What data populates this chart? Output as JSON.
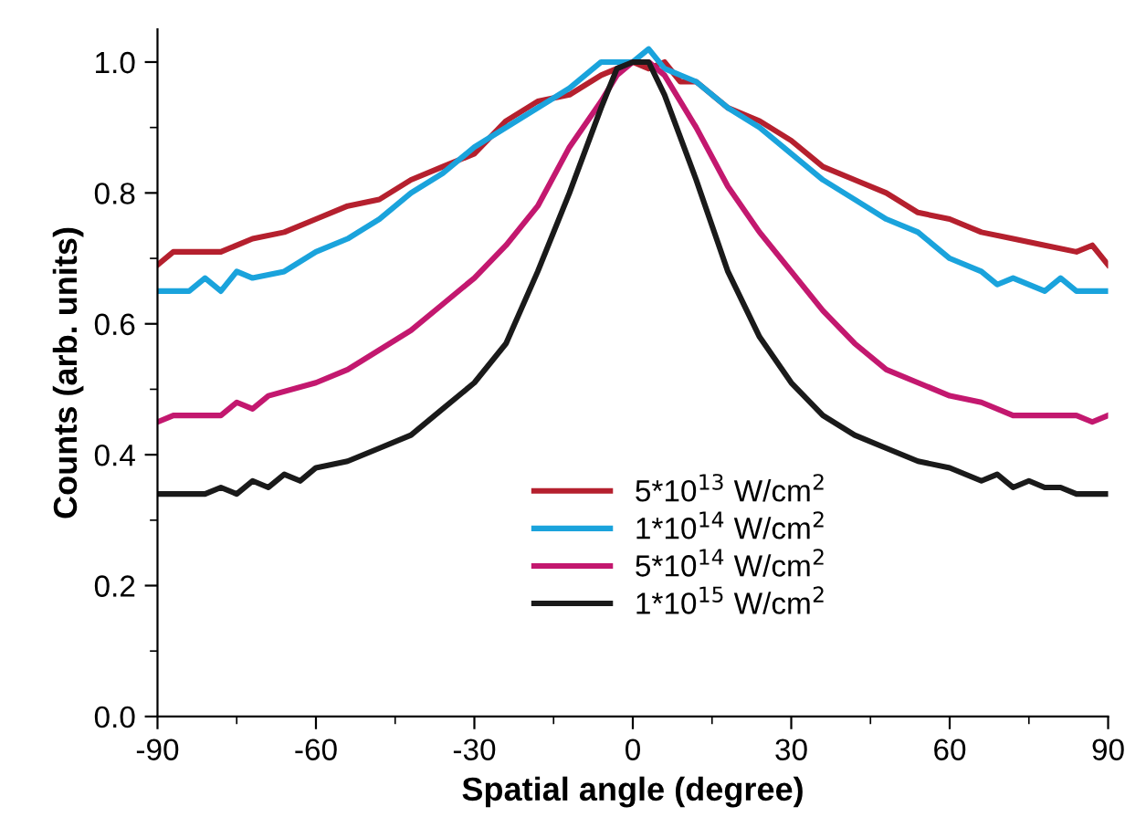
{
  "chart_data": {
    "type": "line",
    "xlabel": "Spatial angle (degree)",
    "ylabel": "Counts (arb. units)",
    "xlim": [
      -90,
      90
    ],
    "xticks": [
      -90,
      -60,
      -30,
      0,
      30,
      60,
      90
    ],
    "ylim": [
      0,
      1.05
    ],
    "yticks": [
      {
        "value": 0,
        "label": "0.0"
      },
      {
        "value": 0.2,
        "label": "0.2"
      },
      {
        "value": 0.4,
        "label": "0.4"
      },
      {
        "value": 0.6,
        "label": "0.6"
      },
      {
        "value": 0.8,
        "label": "0.8"
      },
      {
        "value": 1.0,
        "label": "1.0"
      }
    ],
    "grid": false,
    "legend": "bottom",
    "marker": "none",
    "line_style": "solid",
    "series": [
      {
        "name": "5*10$^{13}$ W/cm$^{2}$",
        "color": "#b5202e",
        "x": [
          -90,
          -87,
          -78,
          -72,
          -66,
          -60,
          -54,
          -48,
          -42,
          -36,
          -30,
          -24,
          -18,
          -12,
          -6,
          -3,
          0,
          3,
          6,
          9,
          12,
          18,
          24,
          30,
          36,
          42,
          48,
          54,
          60,
          66,
          72,
          78,
          84,
          87,
          90
        ],
        "values": [
          0.69,
          0.71,
          0.71,
          0.73,
          0.74,
          0.76,
          0.78,
          0.79,
          0.82,
          0.84,
          0.86,
          0.91,
          0.94,
          0.95,
          0.98,
          0.99,
          1.0,
          0.99,
          1.0,
          0.97,
          0.97,
          0.93,
          0.91,
          0.88,
          0.84,
          0.82,
          0.8,
          0.77,
          0.76,
          0.74,
          0.73,
          0.72,
          0.71,
          0.72,
          0.69
        ]
      },
      {
        "name": "1*10$^{14}$ W/cm$^{2}$",
        "color": "#1aa3dc",
        "x": [
          -90,
          -84,
          -81,
          -78,
          -75,
          -72,
          -66,
          -60,
          -54,
          -48,
          -42,
          -36,
          -30,
          -24,
          -18,
          -12,
          -6,
          0,
          3,
          6,
          12,
          18,
          24,
          30,
          36,
          42,
          48,
          54,
          60,
          66,
          69,
          72,
          78,
          81,
          84,
          90
        ],
        "values": [
          0.65,
          0.65,
          0.67,
          0.65,
          0.68,
          0.67,
          0.68,
          0.71,
          0.73,
          0.76,
          0.8,
          0.83,
          0.87,
          0.9,
          0.93,
          0.96,
          1.0,
          1.0,
          1.02,
          0.99,
          0.97,
          0.93,
          0.9,
          0.86,
          0.82,
          0.79,
          0.76,
          0.74,
          0.7,
          0.68,
          0.66,
          0.67,
          0.65,
          0.67,
          0.65,
          0.65
        ]
      },
      {
        "name": "5*10$^{14}$ W/cm$^{2}$",
        "color": "#c3186f",
        "x": [
          -90,
          -87,
          -78,
          -75,
          -72,
          -69,
          -60,
          -54,
          -48,
          -42,
          -36,
          -30,
          -24,
          -18,
          -12,
          -6,
          -3,
          0,
          3,
          6,
          12,
          18,
          24,
          30,
          36,
          42,
          48,
          54,
          60,
          66,
          72,
          78,
          84,
          87,
          90
        ],
        "values": [
          0.45,
          0.46,
          0.46,
          0.48,
          0.47,
          0.49,
          0.51,
          0.53,
          0.56,
          0.59,
          0.63,
          0.67,
          0.72,
          0.78,
          0.87,
          0.94,
          0.98,
          1.0,
          1.0,
          0.98,
          0.9,
          0.81,
          0.74,
          0.68,
          0.62,
          0.57,
          0.53,
          0.51,
          0.49,
          0.48,
          0.46,
          0.46,
          0.46,
          0.45,
          0.46
        ]
      },
      {
        "name": "1*10$^{15}$ W/cm$^{2}$",
        "color": "#1a1a1a",
        "x": [
          -90,
          -81,
          -78,
          -75,
          -72,
          -69,
          -66,
          -63,
          -60,
          -54,
          -48,
          -42,
          -36,
          -30,
          -24,
          -18,
          -12,
          -6,
          -3,
          0,
          3,
          6,
          12,
          18,
          24,
          30,
          36,
          42,
          48,
          54,
          60,
          66,
          69,
          72,
          75,
          78,
          81,
          84,
          90
        ],
        "values": [
          0.34,
          0.34,
          0.35,
          0.34,
          0.36,
          0.35,
          0.37,
          0.36,
          0.38,
          0.39,
          0.41,
          0.43,
          0.47,
          0.51,
          0.57,
          0.68,
          0.8,
          0.93,
          0.99,
          1.0,
          1.0,
          0.95,
          0.82,
          0.68,
          0.58,
          0.51,
          0.46,
          0.43,
          0.41,
          0.39,
          0.38,
          0.36,
          0.37,
          0.35,
          0.36,
          0.35,
          0.35,
          0.34,
          0.34
        ]
      }
    ]
  }
}
